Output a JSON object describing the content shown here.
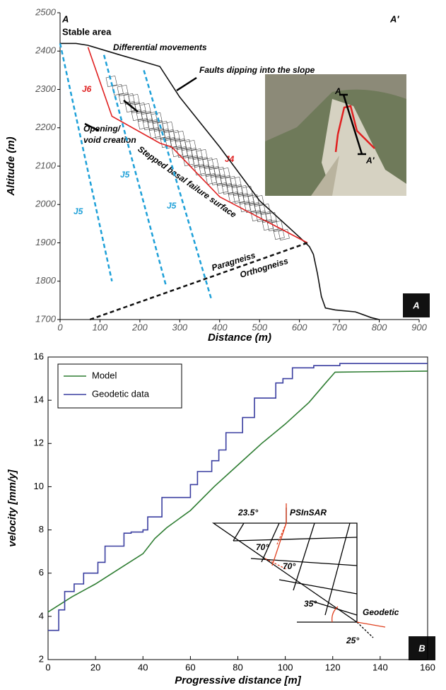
{
  "chart_data": [
    {
      "type": "line",
      "x_label": "Distance (m)",
      "y_label": "Altitude (m)",
      "xlim": [
        0,
        900
      ],
      "xticks": [
        0,
        100,
        200,
        300,
        400,
        500,
        600,
        700,
        800,
        900
      ],
      "ylim": [
        1700,
        2500
      ],
      "yticks": [
        1700,
        1800,
        1900,
        2000,
        2100,
        2200,
        2300,
        2400,
        2500
      ],
      "annotations": [
        "A",
        "A′",
        "A",
        "A′",
        "Stable area",
        "Differential movements",
        "Faults dipping into the slope",
        "Opening/",
        "void creation",
        "Stepped basal failure surface",
        "J4",
        "Paragneiss",
        "Orthogneiss",
        "A"
      ],
      "series": [
        {
          "color": "#111111",
          "style": "solid",
          "x": [
            0,
            40,
            70,
            150,
            250,
            300,
            400,
            500,
            600,
            625,
            635,
            645,
            655,
            665,
            690,
            740,
            780,
            800
          ],
          "values": [
            2420,
            2420,
            2415,
            2390,
            2360,
            2280,
            2150,
            2010,
            1915,
            1890,
            1870,
            1820,
            1760,
            1730,
            1725,
            1720,
            1705,
            1700
          ]
        },
        {
          "name": "J5",
          "color": "#1ea0d8",
          "style": "dashed",
          "x": [
            0,
            130
          ],
          "values": [
            2420,
            1800
          ]
        },
        {
          "name": "J5",
          "color": "#1ea0d8",
          "style": "dashed",
          "x": [
            110,
            265
          ],
          "values": [
            2390,
            1790
          ]
        },
        {
          "name": "J5",
          "color": "#1ea0d8",
          "style": "dashed",
          "x": [
            210,
            380
          ],
          "values": [
            2350,
            1750
          ]
        },
        {
          "name": "J6",
          "color": "#e02020",
          "style": "solid",
          "x": [
            70,
            130,
            250,
            280,
            400,
            620
          ],
          "values": [
            2410,
            2230,
            2160,
            2150,
            2020,
            1900
          ]
        },
        {
          "color": "#111111",
          "style": "dashed",
          "x": [
            75,
            620
          ],
          "values": [
            1700,
            1900
          ]
        }
      ]
    },
    {
      "type": "line",
      "x_label": "Progressive distance [m]",
      "y_label": "velocity [mm/y]",
      "xlim": [
        0,
        160
      ],
      "xticks": [
        0,
        20,
        40,
        60,
        80,
        100,
        120,
        140,
        160
      ],
      "ylim": [
        2,
        16
      ],
      "yticks": [
        2,
        4,
        6,
        8,
        10,
        12,
        14,
        16
      ],
      "legend": "upper left",
      "annotations": [
        "23.5°",
        "PSInSAR",
        "70°",
        "70°",
        "35°",
        "Geodetic",
        "25°",
        "B"
      ],
      "series": [
        {
          "name": "Model",
          "color": "#2e7d32",
          "style": "solid",
          "x": [
            0,
            10,
            20,
            30,
            40,
            45,
            50,
            60,
            70,
            80,
            90,
            100,
            110,
            117,
            121,
            160
          ],
          "values": [
            4.2,
            4.9,
            5.5,
            6.2,
            6.9,
            7.6,
            8.1,
            8.9,
            10.0,
            11.0,
            12.0,
            12.9,
            13.9,
            14.8,
            15.3,
            15.35
          ]
        },
        {
          "name": "Geodetic data",
          "color": "#3a3ea0",
          "style": "solid",
          "x": [
            0,
            4.5,
            4.5,
            7,
            7,
            11,
            11,
            15,
            15,
            21,
            21,
            24,
            24,
            32,
            32,
            35,
            35,
            40,
            40,
            42,
            42,
            48,
            48,
            60,
            60,
            63,
            63,
            69,
            69,
            72,
            72,
            75,
            75,
            82,
            82,
            87,
            87,
            96,
            96,
            99,
            99,
            103,
            103,
            112,
            112,
            123,
            123,
            160
          ],
          "values": [
            3.35,
            3.35,
            4.3,
            4.3,
            5.15,
            5.15,
            5.5,
            5.5,
            6.0,
            6.0,
            6.5,
            6.5,
            7.25,
            7.25,
            7.85,
            7.85,
            7.9,
            7.9,
            8.0,
            8.0,
            8.6,
            8.6,
            9.5,
            9.5,
            10.1,
            10.1,
            10.7,
            10.7,
            11.2,
            11.2,
            11.7,
            11.7,
            12.5,
            12.5,
            13.2,
            13.2,
            14.1,
            14.1,
            14.8,
            14.8,
            15.0,
            15.0,
            15.5,
            15.5,
            15.6,
            15.6,
            15.7,
            15.7
          ]
        }
      ]
    }
  ]
}
